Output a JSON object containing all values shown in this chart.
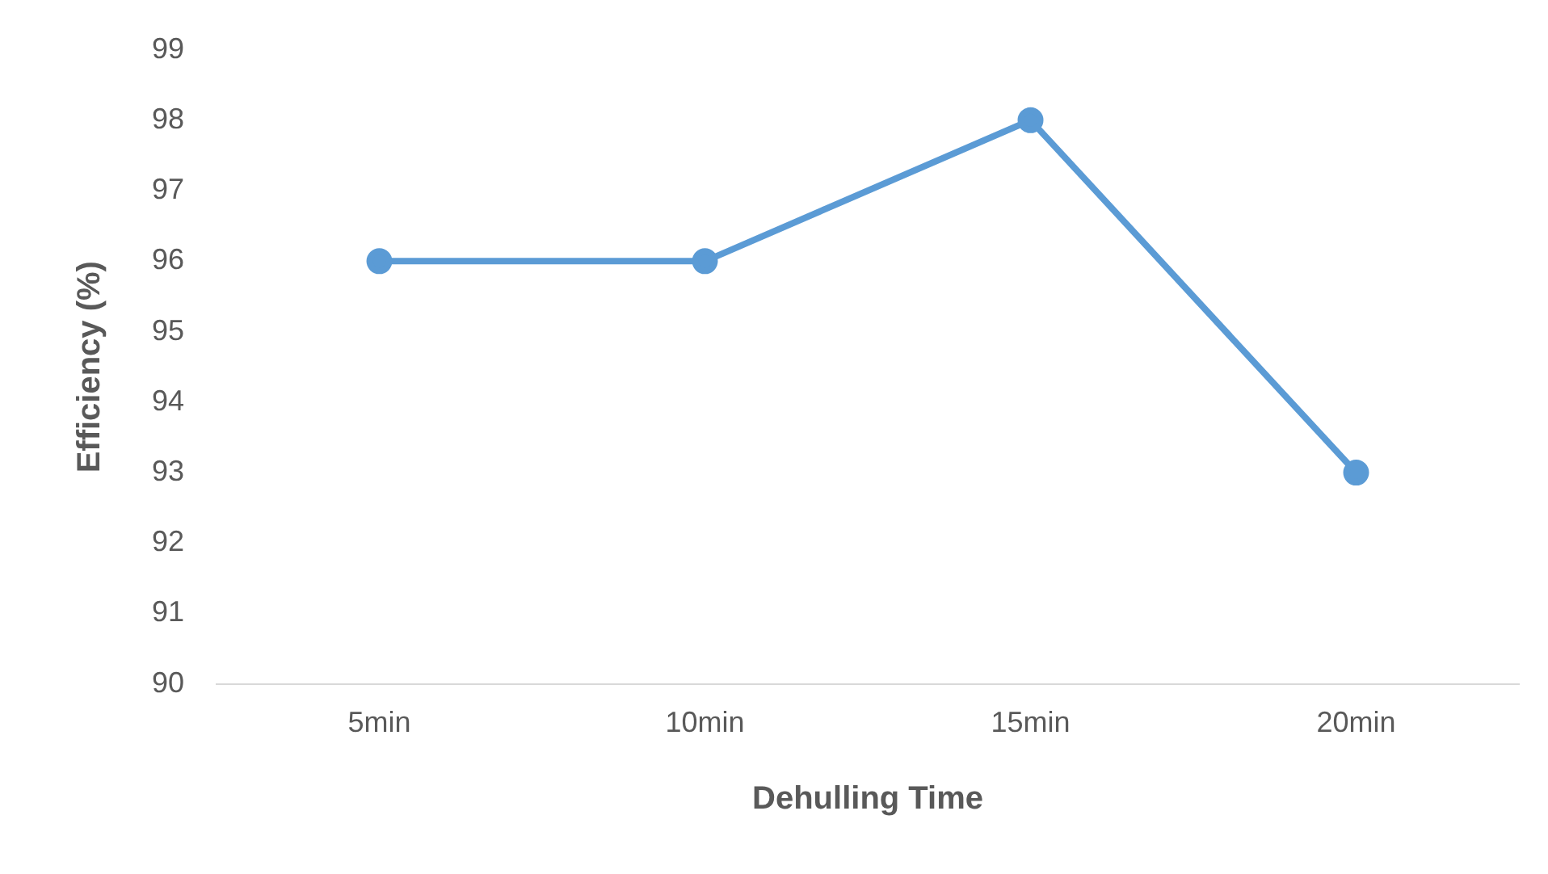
{
  "chart_data": {
    "type": "line",
    "xlabel": "Dehulling Time",
    "ylabel": "Efficiency (%)",
    "categories": [
      "5min",
      "10min",
      "15min",
      "20min"
    ],
    "series": [
      {
        "color": "#5b9bd5",
        "values": [
          96,
          96,
          98,
          93
        ]
      }
    ],
    "ylim": [
      90,
      99
    ],
    "yticks": [
      90,
      91,
      92,
      93,
      94,
      95,
      96,
      97,
      98,
      99
    ],
    "grid": false,
    "legend": false,
    "marker": "circle",
    "line_style": "solid"
  }
}
